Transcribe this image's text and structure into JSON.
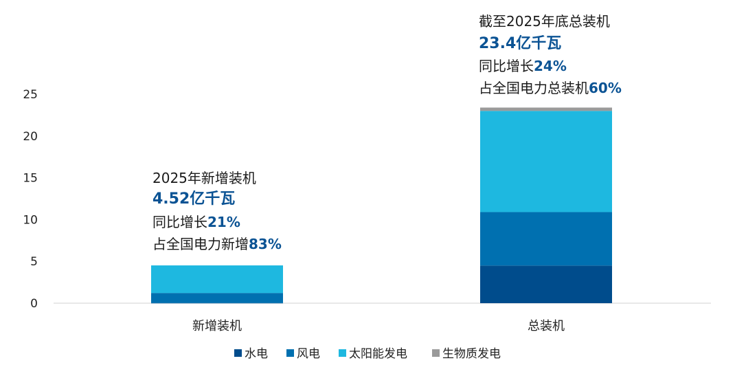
{
  "chart_data": {
    "type": "bar",
    "stacked": true,
    "categories": [
      "新增装机",
      "总装机"
    ],
    "series": [
      {
        "name": "水电",
        "color": "#004C8C",
        "values": [
          0.02,
          4.5
        ]
      },
      {
        "name": "风电",
        "color": "#0070B0",
        "values": [
          1.2,
          6.4
        ]
      },
      {
        "name": "太阳能发电",
        "color": "#1EB8E0",
        "values": [
          3.3,
          12.1
        ]
      },
      {
        "name": "生物质发电",
        "color": "#9A9A9A",
        "values": [
          0.0,
          0.4
        ]
      }
    ],
    "ylim": [
      0,
      25
    ],
    "yticks": [
      "0",
      "5",
      "10",
      "15",
      "20",
      "25"
    ],
    "grid": false,
    "legend_position": "bottom",
    "annotations": [
      {
        "category": "新增装机",
        "line1": "2025年新增装机",
        "big": "4.52亿千瓦",
        "line3_prefix": "同比增长",
        "line3_value": "21%",
        "line4_prefix": "占全国电力新增",
        "line4_value": "83%"
      },
      {
        "category": "总装机",
        "line1": "截至2025年底总装机",
        "big": "23.4亿千瓦",
        "line3_prefix": "同比增长",
        "line3_value": "24%",
        "line4_prefix": "占全国电力总装机",
        "line4_value": "60%"
      }
    ]
  }
}
